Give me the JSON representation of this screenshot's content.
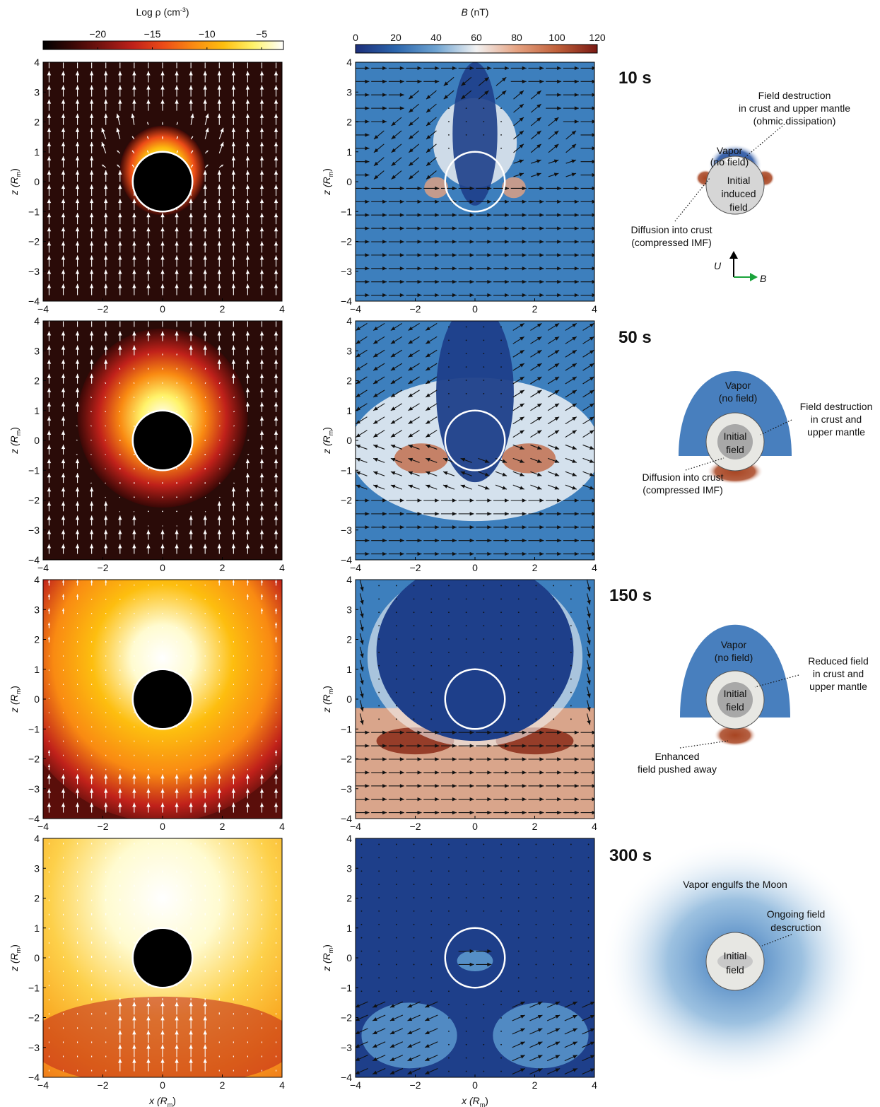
{
  "colorbar_left": {
    "title": "Log ρ (cm",
    "title_sup": "-3",
    "title_end": ")",
    "ticks": [
      -20,
      -15,
      -10,
      -5
    ],
    "tick_labels": [
      "−20",
      "−15",
      "−10",
      "−5"
    ],
    "range": [
      -25,
      -3
    ],
    "colors": [
      "#000000",
      "#3a0806",
      "#7a1410",
      "#c0211a",
      "#ec4b17",
      "#f98a12",
      "#fdbe0f",
      "#fff36a",
      "#ffffff"
    ]
  },
  "colorbar_right": {
    "title_var": "B",
    "title_unit": "(nT)",
    "ticks": [
      0,
      20,
      40,
      60,
      80,
      100,
      120
    ],
    "tick_labels": [
      "0",
      "20",
      "40",
      "60",
      "80",
      "100",
      "120"
    ],
    "range": [
      0,
      120
    ],
    "colors": [
      "#1d2f7a",
      "#2c66ad",
      "#6ea3d1",
      "#f2f2f2",
      "#e6a281",
      "#c0603a",
      "#7a1a14"
    ]
  },
  "axes": {
    "xlabel_var": "x",
    "xlabel_sub": "m",
    "zlabel_var": "z",
    "zlabel_sub": "m",
    "x_ticks": [
      "−4",
      "−2",
      "0",
      "2",
      "4"
    ],
    "z_ticks": [
      "4",
      "3",
      "2",
      "1",
      "0",
      "−1",
      "−2",
      "−3",
      "−4"
    ],
    "range": [
      -4,
      4
    ]
  },
  "chart_data": [
    {
      "type": "heatmap",
      "quantity": "density",
      "times_s": [
        10,
        50,
        150,
        300
      ],
      "vapor_extent_Rm": [
        1.5,
        3.0,
        5.5,
        8.0
      ],
      "xlim": [
        -4,
        4
      ],
      "ylim": [
        -4,
        4
      ],
      "moon_radius_Rm": 1
    },
    {
      "type": "heatmap",
      "quantity": "magnetic_field",
      "times_s": [
        10,
        50,
        150,
        300
      ],
      "xlim": [
        -4,
        4
      ],
      "ylim": [
        -4,
        4
      ],
      "moon_radius_Rm": 1
    }
  ],
  "panels": [
    {
      "time_label": "10 s",
      "annotations": {
        "top": [
          "Field destruction",
          "in crust and upper mantle",
          "(ohmic dissipation)"
        ],
        "vapor": [
          "Vapor",
          "(no field)"
        ],
        "core": [
          "Initial",
          "induced",
          "field"
        ],
        "bottom": [
          "Diffusion into crust",
          "(compressed IMF)"
        ],
        "u_label": "U",
        "b_label": "B"
      }
    },
    {
      "time_label": "50 s",
      "annotations": {
        "vapor": [
          "Vapor",
          "(no field)"
        ],
        "right": [
          "Field destruction",
          "in crust and",
          "upper mantle"
        ],
        "core": [
          "Initial",
          "field"
        ],
        "bottom": [
          "Diffusion into crust",
          "(compressed IMF)"
        ]
      }
    },
    {
      "time_label": "150 s",
      "annotations": {
        "vapor": [
          "Vapor",
          "(no field)"
        ],
        "right": [
          "Reduced field",
          "in crust and",
          "upper mantle"
        ],
        "core": [
          "Initial",
          "field"
        ],
        "bottom": [
          "Enhanced",
          "field pushed away"
        ]
      }
    },
    {
      "time_label": "300 s",
      "annotations": {
        "top": [
          "Vapor engulfs the Moon"
        ],
        "right": [
          "Ongoing field",
          "descruction"
        ],
        "core": [
          "Initial",
          "field"
        ]
      }
    }
  ]
}
